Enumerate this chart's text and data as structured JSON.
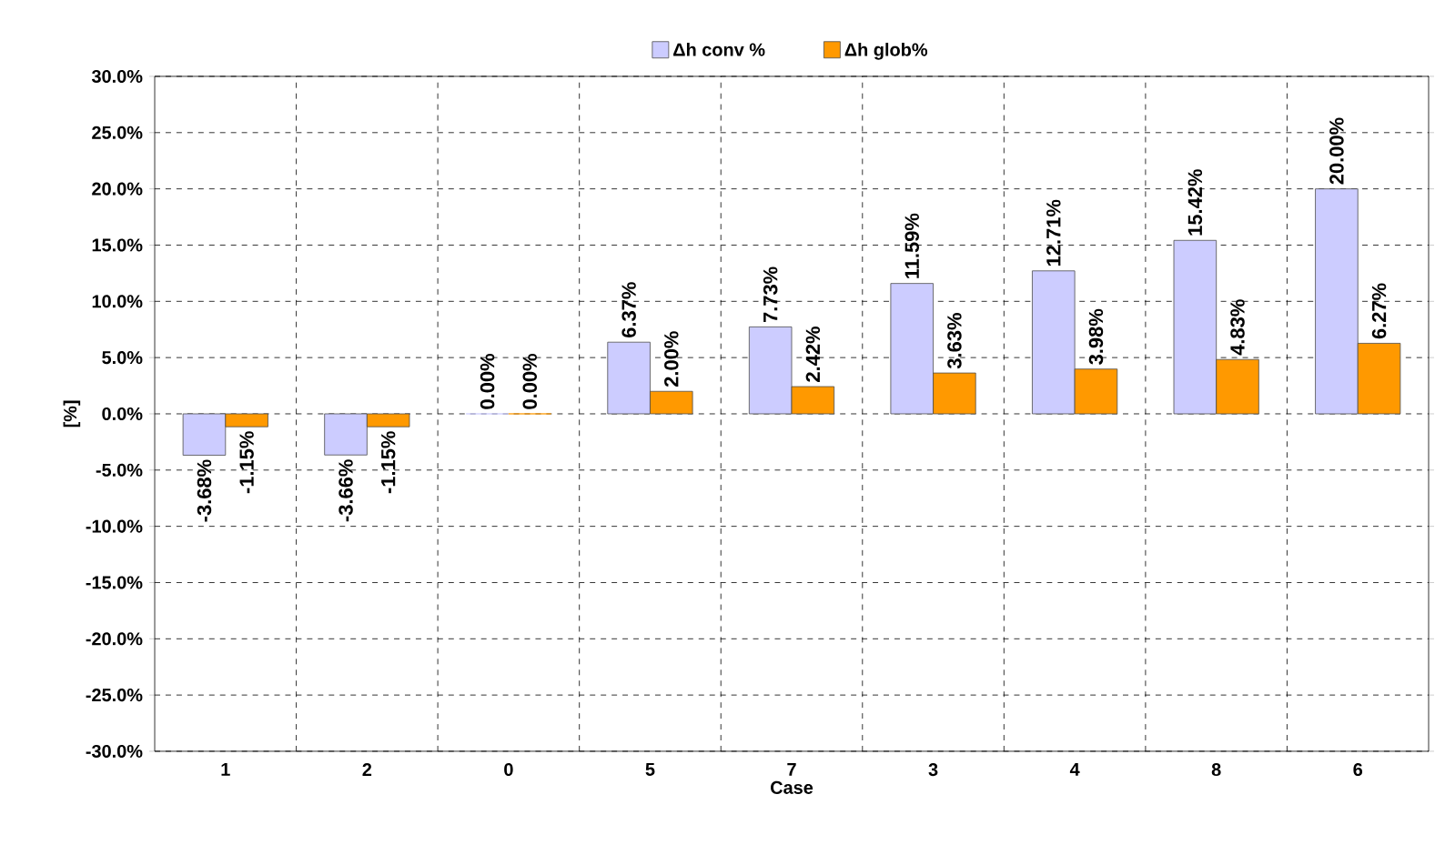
{
  "chart_data": {
    "type": "bar",
    "xlabel": "Case",
    "ylabel": "[%]",
    "categories": [
      "1",
      "2",
      "0",
      "5",
      "7",
      "3",
      "4",
      "8",
      "6"
    ],
    "series": [
      {
        "name": "Δh conv %",
        "color": "#ccccff",
        "values": [
          -3.68,
          -3.66,
          0.0,
          6.37,
          7.73,
          11.59,
          12.71,
          15.42,
          20.0
        ],
        "value_labels": [
          "-3.68%",
          "-3.66%",
          "0.00%",
          "6.37%",
          "7.73%",
          "11.59%",
          "12.71%",
          "15.42%",
          "20.00%"
        ]
      },
      {
        "name": "Δh glob%",
        "color": "#ff9900",
        "values": [
          -1.15,
          -1.15,
          0.0,
          2.0,
          2.42,
          3.63,
          3.98,
          4.83,
          6.27
        ],
        "value_labels": [
          "-1.15%",
          "-1.15%",
          "0.00%",
          "2.00%",
          "2.42%",
          "3.63%",
          "3.98%",
          "4.83%",
          "6.27%"
        ]
      }
    ],
    "ylim": [
      -30,
      30
    ],
    "yticks": [
      {
        "value": -30,
        "label": "-30.0%"
      },
      {
        "value": -25,
        "label": "-25.0%"
      },
      {
        "value": -20,
        "label": "-20.0%"
      },
      {
        "value": -15,
        "label": "-15.0%"
      },
      {
        "value": -10,
        "label": "-10.0%"
      },
      {
        "value": -5,
        "label": "-5.0%"
      },
      {
        "value": 0,
        "label": "0.0%"
      },
      {
        "value": 5,
        "label": "5.0%"
      },
      {
        "value": 10,
        "label": "10.0%"
      },
      {
        "value": 15,
        "label": "15.0%"
      },
      {
        "value": 20,
        "label": "20.0%"
      },
      {
        "value": 25,
        "label": "25.0%"
      },
      {
        "value": 30,
        "label": "30.0%"
      }
    ],
    "grid": true,
    "legend": "top",
    "line_style": "dashed"
  }
}
